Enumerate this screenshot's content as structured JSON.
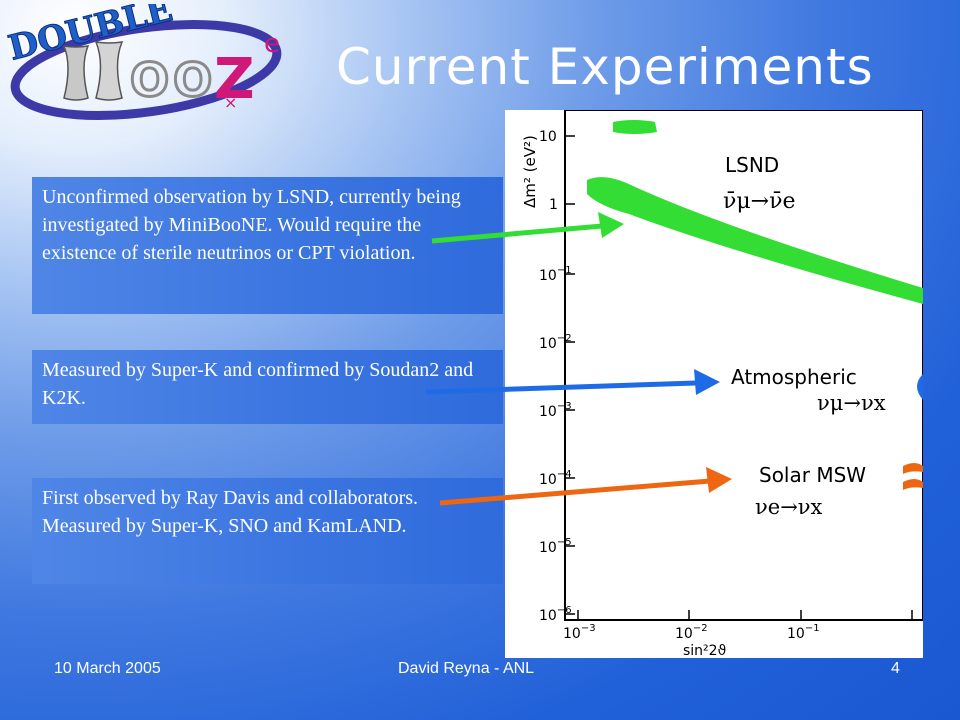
{
  "slide": {
    "title": "Current Experiments",
    "boxes": [
      "Unconfirmed observation by LSND, currently being investigated by MiniBooNE.  Would require the existence of sterile neutrinos or CPT violation.",
      "Measured by Super-K and confirmed by Soudan2 and K2K.",
      "First observed by Ray Davis and collaborators.  Measured  by Super-K, SNO and KamLAND."
    ]
  },
  "logo": {
    "text_double": "DOUBLE",
    "text_oo": "OO",
    "text_z": "Z",
    "text_e": "e",
    "text_x": "×"
  },
  "plot": {
    "y_axis_label": "Δm² (eV²)",
    "x_axis_label": "sin²2ϑ",
    "y_ticks": [
      {
        "base": "10",
        "exp": ""
      },
      {
        "base": "1",
        "exp": ""
      },
      {
        "base": "10",
        "exp": "−1"
      },
      {
        "base": "10",
        "exp": "−2"
      },
      {
        "base": "10",
        "exp": "−3"
      },
      {
        "base": "10",
        "exp": "−4"
      },
      {
        "base": "10",
        "exp": "−5"
      },
      {
        "base": "10",
        "exp": "−6"
      }
    ],
    "x_ticks": [
      {
        "base": "10",
        "exp": "−3"
      },
      {
        "base": "10",
        "exp": "−2"
      },
      {
        "base": "10",
        "exp": "−1"
      }
    ],
    "regions": {
      "lsnd": {
        "name": "LSND",
        "channel": "ν̄μ→ν̄e",
        "color": "#33dd33"
      },
      "atmospheric": {
        "name": "Atmospheric",
        "channel": "νμ→νx",
        "color": "#1f6be6"
      },
      "solar": {
        "name": "Solar MSW",
        "channel": "νe→νx",
        "color": "#ee6611"
      }
    }
  },
  "footer": {
    "date": "10 March 2005",
    "author": "David Reyna - ANL",
    "page": "4"
  }
}
